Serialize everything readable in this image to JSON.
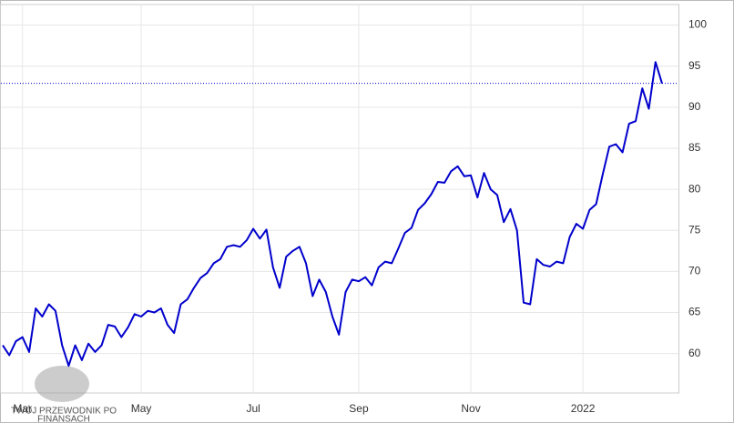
{
  "chart_data": {
    "type": "line",
    "categories": [
      null,
      null,
      null,
      "Mar",
      null,
      null,
      null,
      null,
      null,
      null,
      null,
      null,
      null,
      null,
      null,
      null,
      null,
      null,
      null,
      null,
      null,
      "May",
      null,
      null,
      null,
      null,
      null,
      null,
      null,
      null,
      null,
      null,
      null,
      null,
      null,
      null,
      null,
      null,
      "Jul",
      null,
      null,
      null,
      null,
      null,
      null,
      null,
      null,
      null,
      null,
      null,
      null,
      null,
      null,
      null,
      "Sep",
      null,
      null,
      null,
      null,
      null,
      null,
      null,
      null,
      null,
      null,
      null,
      null,
      null,
      null,
      null,
      null,
      "Nov",
      null,
      null,
      null,
      null,
      null,
      null,
      null,
      null,
      null,
      null,
      null,
      null,
      null,
      null,
      null,
      null,
      "2022",
      null,
      null,
      null,
      null,
      null,
      null,
      null,
      null,
      null,
      null,
      null,
      null
    ],
    "series": [
      {
        "color": "#0000cc",
        "values": [
          61,
          59.8,
          61.5,
          62,
          60.2,
          65.5,
          64.5,
          66,
          65.2,
          61,
          58.5,
          61,
          59.2,
          61.2,
          60.2,
          61,
          63.5,
          63.3,
          62,
          63.2,
          64.8,
          64.5,
          65.2,
          65,
          65.5,
          63.5,
          62.5,
          66,
          66.6,
          68,
          69.2,
          69.8,
          71,
          71.5,
          73,
          73.2,
          73,
          73.8,
          75.2,
          74,
          75.1,
          70.5,
          68,
          71.8,
          72.5,
          73,
          71,
          67,
          69,
          67.5,
          64.5,
          62.3,
          67.5,
          69,
          68.8,
          69.3,
          68.3,
          70.5,
          71.2,
          71,
          72.8,
          74.7,
          75.3,
          77.5,
          78.3,
          79.4,
          80.9,
          80.8,
          82.2,
          82.8,
          81.6,
          81.7,
          79,
          82,
          80,
          79.3,
          76,
          77.6,
          75,
          66.2,
          66,
          71.5,
          70.8,
          70.6,
          71.2,
          71,
          74.2,
          75.8,
          75.2,
          77.5,
          78.2,
          81.8,
          85.2,
          85.5,
          84.5,
          88,
          88.3,
          92.3,
          89.8,
          95.5,
          92.9
        ]
      }
    ],
    "hline": 92.9,
    "ylim": [
      55.2,
      102.5
    ],
    "yticks": [
      60,
      65,
      70,
      75,
      80,
      85,
      90,
      95,
      100
    ],
    "grid": true,
    "watermark": [
      "TWÓJ PRZEWODNIK PO",
      "FINANSACH"
    ]
  }
}
